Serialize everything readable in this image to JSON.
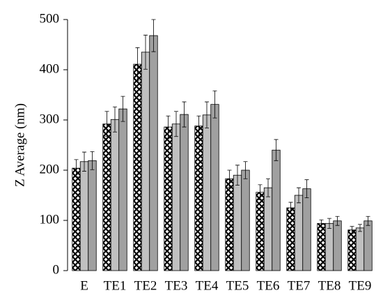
{
  "chart_data": {
    "type": "bar",
    "ylabel": "Z Average (nm)",
    "categories": [
      "E",
      "TE1",
      "TE2",
      "TE3",
      "TE4",
      "TE5",
      "TE6",
      "TE7",
      "TE8",
      "TE9"
    ],
    "series": [
      {
        "color": "#000000",
        "pattern": "crosshatch",
        "values": [
          204,
          292,
          411,
          286,
          288,
          183,
          156,
          125,
          94,
          81
        ],
        "errors": [
          17,
          25,
          33,
          22,
          20,
          17,
          15,
          11,
          7,
          7
        ]
      },
      {
        "color": "#c0c0c0",
        "values": [
          217,
          301,
          435,
          292,
          310,
          190,
          165,
          150,
          94,
          85
        ],
        "errors": [
          19,
          25,
          34,
          25,
          26,
          20,
          18,
          15,
          10,
          7
        ]
      },
      {
        "color": "#a0a0a0",
        "values": [
          219,
          322,
          468,
          311,
          331,
          200,
          240,
          163,
          99,
          99
        ],
        "errors": [
          18,
          25,
          32,
          25,
          27,
          17,
          21,
          18,
          9,
          9
        ]
      }
    ],
    "ylim": [
      0,
      500
    ],
    "yticks": [
      0,
      100,
      200,
      300,
      400,
      500
    ]
  }
}
